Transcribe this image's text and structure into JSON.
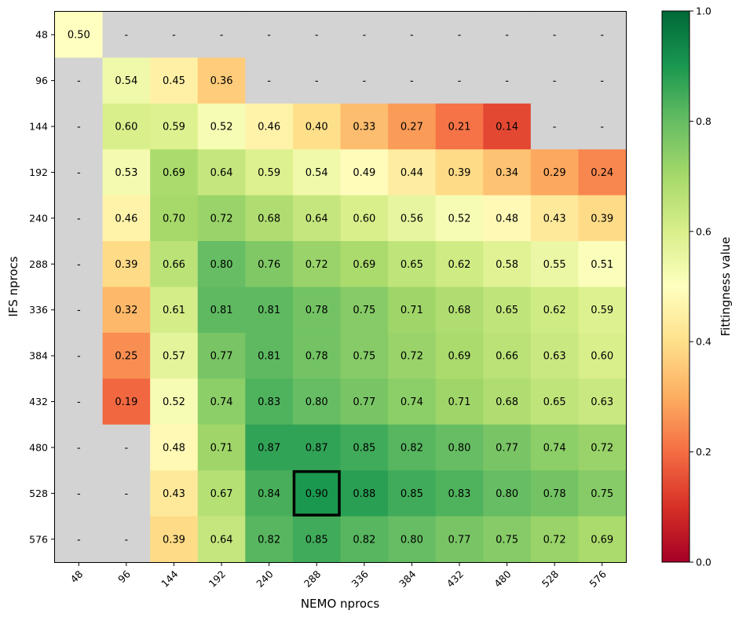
{
  "chart_data": {
    "type": "heatmap",
    "title": "",
    "xlabel": "NEMO nprocs",
    "ylabel": "IFS nprocs",
    "x_categories": [
      "48",
      "96",
      "144",
      "192",
      "240",
      "288",
      "336",
      "384",
      "432",
      "480",
      "528",
      "576"
    ],
    "y_categories": [
      "48",
      "96",
      "144",
      "192",
      "240",
      "288",
      "336",
      "384",
      "432",
      "480",
      "528",
      "576"
    ],
    "values": [
      [
        0.5,
        null,
        null,
        null,
        null,
        null,
        null,
        null,
        null,
        null,
        null,
        null
      ],
      [
        null,
        0.54,
        0.45,
        0.36,
        null,
        null,
        null,
        null,
        null,
        null,
        null,
        null
      ],
      [
        null,
        0.6,
        0.59,
        0.52,
        0.46,
        0.4,
        0.33,
        0.27,
        0.21,
        0.14,
        null,
        null
      ],
      [
        null,
        0.53,
        0.69,
        0.64,
        0.59,
        0.54,
        0.49,
        0.44,
        0.39,
        0.34,
        0.29,
        0.24
      ],
      [
        null,
        0.46,
        0.7,
        0.72,
        0.68,
        0.64,
        0.6,
        0.56,
        0.52,
        0.48,
        0.43,
        0.39
      ],
      [
        null,
        0.39,
        0.66,
        0.8,
        0.76,
        0.72,
        0.69,
        0.65,
        0.62,
        0.58,
        0.55,
        0.51
      ],
      [
        null,
        0.32,
        0.61,
        0.81,
        0.81,
        0.78,
        0.75,
        0.71,
        0.68,
        0.65,
        0.62,
        0.59
      ],
      [
        null,
        0.25,
        0.57,
        0.77,
        0.81,
        0.78,
        0.75,
        0.72,
        0.69,
        0.66,
        0.63,
        0.6
      ],
      [
        null,
        0.19,
        0.52,
        0.74,
        0.83,
        0.8,
        0.77,
        0.74,
        0.71,
        0.68,
        0.65,
        0.63
      ],
      [
        null,
        null,
        0.48,
        0.71,
        0.87,
        0.87,
        0.85,
        0.82,
        0.8,
        0.77,
        0.74,
        0.72
      ],
      [
        null,
        null,
        0.43,
        0.67,
        0.84,
        0.9,
        0.88,
        0.85,
        0.83,
        0.8,
        0.78,
        0.75
      ],
      [
        null,
        null,
        0.39,
        0.64,
        0.82,
        0.85,
        0.82,
        0.8,
        0.77,
        0.75,
        0.72,
        0.69
      ]
    ],
    "missing_label": "-",
    "missing_color": "#d3d3d3",
    "highlight": {
      "x": "288",
      "y": "528",
      "value": 0.9
    },
    "colormap": "RdYlGn",
    "vmin": 0.0,
    "vmax": 1.0,
    "colorbar": {
      "label": "Fittingness value",
      "ticks": [
        "0.0",
        "0.2",
        "0.4",
        "0.6",
        "0.8",
        "1.0"
      ]
    },
    "grid": false,
    "legend": "colorbar-right"
  }
}
